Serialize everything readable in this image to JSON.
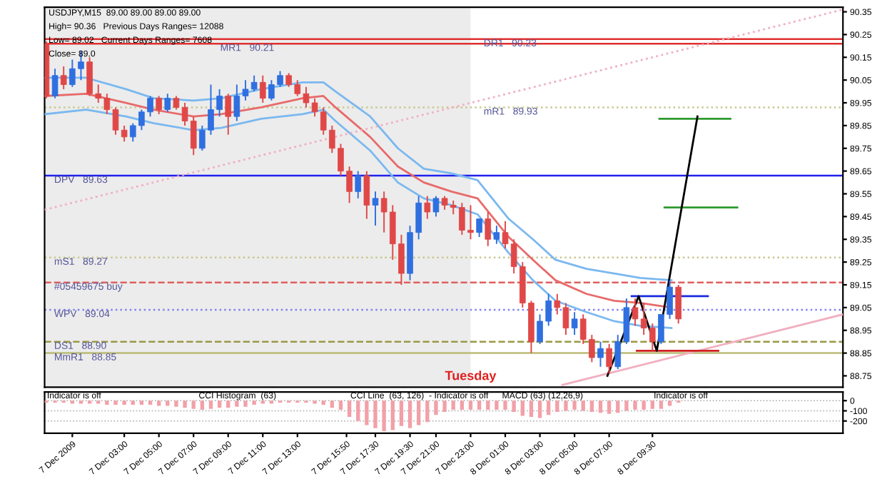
{
  "chart_data": [
    {
      "type": "candlestick",
      "xlim": [
        "2009-12-06T22:24",
        "2009-12-08T20:30"
      ],
      "ylim": [
        88.7,
        90.37
      ],
      "tick_labels": "y",
      "yticks": [
        90.35,
        90.25,
        90.15,
        90.05,
        89.95,
        89.85,
        89.75,
        89.65,
        89.55,
        89.45,
        89.35,
        89.25,
        89.15,
        89.05,
        88.95,
        88.85,
        88.75
      ],
      "bands": [
        {
          "axis": "x",
          "from": "2009-12-06T22:24",
          "to": "2009-12-07T23:00",
          "color": "#ececec"
        }
      ],
      "ref_lines": [
        {
          "axis": "y",
          "value": 90.21,
          "label": "MR1   90.21",
          "color": "#e03030",
          "line_style": "solid"
        },
        {
          "axis": "y",
          "value": 90.23,
          "label": "DR1   90.23",
          "color": "#e03030",
          "line_style": "solid"
        },
        {
          "axis": "y",
          "value": 89.93,
          "label": "mR1   89.93",
          "color": "#c8c890",
          "line_style": "dotted"
        },
        {
          "axis": "y",
          "value": 89.63,
          "label": "DPV   89.63",
          "color": "#2020ee",
          "line_style": "solid"
        },
        {
          "axis": "y",
          "value": 89.27,
          "label": "mS1   89.27",
          "color": "#c8c890",
          "line_style": "dotted"
        },
        {
          "axis": "y",
          "value": 89.16,
          "label": "#05459675 buy",
          "color": "#e06060",
          "line_style": "dashed"
        },
        {
          "axis": "y",
          "value": 89.04,
          "label": "WPV   89.04",
          "color": "#8080ee",
          "line_style": "dotted"
        },
        {
          "axis": "y",
          "value": 88.9,
          "label": "DS1   88.90",
          "color": "#999944",
          "line_style": "dashed"
        },
        {
          "axis": "y",
          "value": 88.85,
          "label": "MmR1   88.85",
          "color": "#bbbb77",
          "line_style": "solid"
        }
      ],
      "annotations": [
        "USDJPY,M15  89.00 89.00 89.00 89.00",
        "High= 90.36   Previous Days Ranges= 12088",
        "Low= 89.02   Current Days Ranges= 7608",
        "Close= 89.0",
        {
          "text": "Tuesday",
          "x": "2009-12-07T23:00",
          "y": 88.72
        }
      ],
      "series": [
        {
          "x": [
            "2009-12-06T22:30",
            "2009-12-06T23:00",
            "2009-12-06T23:30",
            "2009-12-07T00:00",
            "2009-12-07T00:30",
            "2009-12-07T01:00",
            "2009-12-07T01:30",
            "2009-12-07T02:00",
            "2009-12-07T02:30",
            "2009-12-07T03:00",
            "2009-12-07T03:30",
            "2009-12-07T04:00",
            "2009-12-07T04:30",
            "2009-12-07T05:00",
            "2009-12-07T05:30",
            "2009-12-07T06:00",
            "2009-12-07T06:30",
            "2009-12-07T07:00",
            "2009-12-07T07:30",
            "2009-12-07T08:00",
            "2009-12-07T08:30",
            "2009-12-07T09:00",
            "2009-12-07T09:30",
            "2009-12-07T10:00",
            "2009-12-07T10:30",
            "2009-12-07T11:00",
            "2009-12-07T11:30",
            "2009-12-07T12:00",
            "2009-12-07T12:30",
            "2009-12-07T13:00",
            "2009-12-07T13:30",
            "2009-12-07T14:00",
            "2009-12-07T14:30",
            "2009-12-07T15:00",
            "2009-12-07T15:30",
            "2009-12-07T16:00",
            "2009-12-07T16:30",
            "2009-12-07T17:00",
            "2009-12-07T17:30",
            "2009-12-07T18:00",
            "2009-12-07T18:30",
            "2009-12-07T19:00",
            "2009-12-07T19:30",
            "2009-12-07T20:00",
            "2009-12-07T20:30",
            "2009-12-07T21:00",
            "2009-12-07T21:30",
            "2009-12-07T22:00",
            "2009-12-07T22:30",
            "2009-12-07T23:00",
            "2009-12-07T23:30",
            "2009-12-08T00:00",
            "2009-12-08T00:30",
            "2009-12-08T01:00",
            "2009-12-08T01:30",
            "2009-12-08T02:00",
            "2009-12-08T02:30",
            "2009-12-08T03:00",
            "2009-12-08T03:30",
            "2009-12-08T04:00",
            "2009-12-08T04:30",
            "2009-12-08T05:00",
            "2009-12-08T05:30",
            "2009-12-08T06:00",
            "2009-12-08T06:30",
            "2009-12-08T07:00",
            "2009-12-08T07:30",
            "2009-12-08T08:00",
            "2009-12-08T08:30",
            "2009-12-08T09:00",
            "2009-12-08T09:30",
            "2009-12-08T10:00",
            "2009-12-08T10:30",
            "2009-12-08T11:00"
          ],
          "ohlc": [
            [
              90.21,
              90.22,
              89.97,
              89.98
            ],
            [
              89.98,
              90.1,
              89.97,
              90.07
            ],
            [
              90.07,
              90.11,
              90.01,
              90.03
            ],
            [
              90.03,
              90.14,
              90.02,
              90.1
            ],
            [
              90.1,
              90.18,
              90.05,
              90.13
            ],
            [
              90.13,
              90.15,
              89.98,
              89.99
            ],
            [
              89.99,
              90.03,
              89.95,
              89.97
            ],
            [
              89.97,
              89.99,
              89.9,
              89.92
            ],
            [
              89.92,
              89.93,
              89.81,
              89.83
            ],
            [
              89.83,
              89.85,
              89.78,
              89.8
            ],
            [
              89.8,
              89.86,
              89.78,
              89.85
            ],
            [
              89.85,
              89.92,
              89.83,
              89.91
            ],
            [
              89.91,
              89.98,
              89.89,
              89.97
            ],
            [
              89.97,
              89.98,
              89.9,
              89.92
            ],
            [
              89.92,
              89.99,
              89.91,
              89.97
            ],
            [
              89.97,
              89.98,
              89.92,
              89.93
            ],
            [
              89.93,
              89.95,
              89.85,
              89.87
            ],
            [
              89.87,
              89.89,
              89.72,
              89.75
            ],
            [
              89.75,
              89.85,
              89.74,
              89.83
            ],
            [
              89.83,
              90.03,
              89.81,
              89.92
            ],
            [
              89.92,
              90.01,
              89.89,
              89.98
            ],
            [
              89.98,
              89.99,
              89.81,
              89.89
            ],
            [
              89.89,
              90.03,
              89.87,
              89.98
            ],
            [
              89.98,
              90.05,
              89.96,
              90.01
            ],
            [
              90.01,
              90.07,
              90.0,
              90.04
            ],
            [
              90.04,
              90.07,
              89.95,
              89.97
            ],
            [
              89.97,
              90.05,
              89.96,
              90.03
            ],
            [
              90.03,
              90.09,
              90.02,
              90.07
            ],
            [
              90.07,
              90.08,
              90.02,
              90.03
            ],
            [
              90.03,
              90.05,
              89.98,
              89.99
            ],
            [
              89.99,
              90.02,
              89.93,
              89.95
            ],
            [
              89.95,
              89.97,
              89.89,
              89.91
            ],
            [
              89.91,
              89.93,
              89.81,
              89.83
            ],
            [
              89.83,
              89.85,
              89.73,
              89.75
            ],
            [
              89.75,
              89.77,
              89.63,
              89.65
            ],
            [
              89.65,
              89.67,
              89.51,
              89.56
            ],
            [
              89.56,
              89.65,
              89.53,
              89.63
            ],
            [
              89.63,
              89.65,
              89.44,
              89.5
            ],
            [
              89.5,
              89.56,
              89.41,
              89.53
            ],
            [
              89.53,
              89.56,
              89.38,
              89.47
            ],
            [
              89.47,
              89.5,
              89.26,
              89.33
            ],
            [
              89.33,
              89.37,
              89.15,
              89.2
            ],
            [
              89.2,
              89.41,
              89.17,
              89.38
            ],
            [
              89.38,
              89.54,
              89.35,
              89.51
            ],
            [
              89.51,
              89.54,
              89.44,
              89.47
            ],
            [
              89.47,
              89.54,
              89.45,
              89.53
            ],
            [
              89.53,
              89.54,
              89.48,
              89.5
            ],
            [
              89.5,
              89.52,
              89.46,
              89.49
            ],
            [
              89.49,
              89.51,
              89.37,
              89.39
            ],
            [
              89.39,
              89.5,
              89.35,
              89.38
            ],
            [
              89.38,
              89.44,
              89.36,
              89.44
            ],
            [
              89.44,
              89.47,
              89.32,
              89.35
            ],
            [
              89.35,
              89.41,
              89.33,
              89.38
            ],
            [
              89.38,
              89.43,
              89.31,
              89.33
            ],
            [
              89.33,
              89.35,
              89.2,
              89.23
            ],
            [
              89.23,
              89.25,
              89.05,
              89.07
            ],
            [
              89.07,
              89.08,
              88.85,
              88.9
            ],
            [
              88.9,
              89.02,
              88.89,
              88.99
            ],
            [
              88.99,
              89.11,
              88.97,
              89.08
            ],
            [
              89.08,
              89.11,
              89.02,
              89.05
            ],
            [
              89.05,
              89.07,
              88.93,
              88.96
            ],
            [
              88.96,
              89.03,
              88.93,
              89.0
            ],
            [
              89.0,
              89.02,
              88.89,
              88.91
            ],
            [
              88.91,
              88.93,
              88.81,
              88.83
            ],
            [
              88.83,
              88.9,
              88.79,
              88.87
            ],
            [
              88.87,
              88.89,
              88.76,
              88.79
            ],
            [
              88.79,
              88.93,
              88.78,
              88.9
            ],
            [
              88.9,
              89.09,
              88.89,
              89.05
            ],
            [
              89.05,
              89.09,
              88.97,
              89.0
            ],
            [
              89.0,
              89.07,
              88.93,
              88.96
            ],
            [
              88.96,
              88.98,
              88.86,
              88.9
            ],
            [
              88.9,
              89.02,
              88.89,
              89.02
            ],
            [
              89.02,
              89.17,
              89.0,
              89.14
            ],
            [
              89.14,
              89.15,
              88.98,
              89.0
            ]
          ],
          "colors": [
            "#e04848",
            "#2f6fe0",
            "#e04848",
            "#2f6fe0",
            "#2f6fe0",
            "#e04848",
            "#e04848",
            "#e04848",
            "#e04848",
            "#e04848",
            "#2f6fe0",
            "#2f6fe0",
            "#2f6fe0",
            "#e04848",
            "#2f6fe0",
            "#e04848",
            "#e04848",
            "#e04848",
            "#2f6fe0",
            "#2f6fe0",
            "#2f6fe0",
            "#e04848",
            "#2f6fe0",
            "#2f6fe0",
            "#2f6fe0",
            "#e04848",
            "#2f6fe0",
            "#2f6fe0",
            "#e04848",
            "#e04848",
            "#e04848",
            "#e04848",
            "#e04848",
            "#e04848",
            "#e04848",
            "#e04848",
            "#2f6fe0",
            "#e04848",
            "#2f6fe0",
            "#e04848",
            "#e04848",
            "#e04848",
            "#2f6fe0",
            "#2f6fe0",
            "#e04848",
            "#2f6fe0",
            "#e04848",
            "#e04848",
            "#e04848",
            "#e04848",
            "#2f6fe0",
            "#e04848",
            "#2f6fe0",
            "#e04848",
            "#e04848",
            "#e04848",
            "#e04848",
            "#2f6fe0",
            "#2f6fe0",
            "#e04848",
            "#e04848",
            "#2f6fe0",
            "#e04848",
            "#e04848",
            "#2f6fe0",
            "#e04848",
            "#2f6fe0",
            "#2f6fe0",
            "#e04848",
            "#e04848",
            "#e04848",
            "#2f6fe0",
            "#2f6fe0",
            "#e04848"
          ]
        },
        {
          "type": "line",
          "color": "#e86a6a",
          "x": [
            "2009-12-06T22:24",
            "2009-12-07T00:48",
            "2009-12-07T03:06",
            "2009-12-07T04:42",
            "2009-12-07T07:00",
            "2009-12-07T08:36",
            "2009-12-07T10:54",
            "2009-12-07T13:18",
            "2009-12-07T14:30",
            "2009-12-07T15:12",
            "2009-12-07T17:12",
            "2009-12-07T18:48",
            "2009-12-07T20:18",
            "2009-12-07T21:54",
            "2009-12-07T23:24",
            "2009-12-08T01:12",
            "2009-12-08T02:36",
            "2009-12-08T03:54",
            "2009-12-08T05:42",
            "2009-12-08T07:18",
            "2009-12-08T08:48",
            "2009-12-08T10:36"
          ],
          "values": [
            89.98,
            89.99,
            89.95,
            89.92,
            89.89,
            89.9,
            89.93,
            89.97,
            89.98,
            89.93,
            89.8,
            89.67,
            89.6,
            89.56,
            89.53,
            89.36,
            89.26,
            89.17,
            89.11,
            89.08,
            89.07,
            89.05
          ]
        },
        {
          "type": "line",
          "color": "#7ab8f0",
          "x": [
            "2009-12-06T22:24",
            "2009-12-07T00:48",
            "2009-12-07T03:06",
            "2009-12-07T04:42",
            "2009-12-07T07:00",
            "2009-12-07T08:36",
            "2009-12-07T10:54",
            "2009-12-07T13:18",
            "2009-12-07T14:30",
            "2009-12-07T15:12",
            "2009-12-07T17:12",
            "2009-12-07T18:48",
            "2009-12-07T20:18",
            "2009-12-07T21:54",
            "2009-12-07T23:24",
            "2009-12-08T01:12",
            "2009-12-08T02:36",
            "2009-12-08T03:54",
            "2009-12-08T05:42",
            "2009-12-08T07:18",
            "2009-12-08T08:48",
            "2009-12-08T10:36"
          ],
          "values": [
            90.06,
            90.06,
            90.01,
            89.97,
            89.96,
            89.97,
            90.01,
            90.04,
            90.04,
            90.0,
            89.89,
            89.75,
            89.66,
            89.64,
            89.61,
            89.44,
            89.35,
            89.26,
            89.22,
            89.2,
            89.18,
            89.17
          ]
        },
        {
          "type": "line",
          "color": "#7ab8f0",
          "x": [
            "2009-12-06T22:24",
            "2009-12-07T00:48",
            "2009-12-07T03:06",
            "2009-12-07T04:42",
            "2009-12-07T07:00",
            "2009-12-07T08:36",
            "2009-12-07T10:54",
            "2009-12-07T13:18",
            "2009-12-07T14:30",
            "2009-12-07T15:12",
            "2009-12-07T17:12",
            "2009-12-07T18:48",
            "2009-12-07T20:18",
            "2009-12-07T21:54",
            "2009-12-07T23:24",
            "2009-12-08T01:12",
            "2009-12-08T02:36",
            "2009-12-08T03:54",
            "2009-12-08T05:42",
            "2009-12-08T07:18",
            "2009-12-08T08:48",
            "2009-12-08T10:36"
          ],
          "values": [
            89.9,
            89.92,
            89.89,
            89.86,
            89.83,
            89.84,
            89.88,
            89.9,
            89.92,
            89.87,
            89.74,
            89.6,
            89.53,
            89.5,
            89.46,
            89.29,
            89.17,
            89.08,
            89.03,
            88.99,
            88.97,
            88.96
          ]
        },
        {
          "type": "line",
          "color": "#f0b0c0",
          "line_style": "dotted",
          "x": [
            "2009-12-06T22:24",
            "2009-12-08T20:30"
          ],
          "values": [
            89.48,
            90.36
          ]
        },
        {
          "type": "line",
          "color": "#f0b0c0",
          "x": [
            "2009-12-08T04:18",
            "2009-12-08T20:30"
          ],
          "values": [
            88.71,
            89.02
          ]
        },
        {
          "type": "line",
          "color": "#2e9a2e",
          "x": [
            "2009-12-08T09:54",
            "2009-12-08T14:00"
          ],
          "values": [
            89.88,
            89.88
          ]
        },
        {
          "type": "line",
          "color": "#2e9a2e",
          "x": [
            "2009-12-08T10:12",
            "2009-12-08T14:24"
          ],
          "values": [
            89.49,
            89.49
          ]
        },
        {
          "type": "line",
          "color": "#1a2ae0",
          "x": [
            "2009-12-08T08:18",
            "2009-12-08T12:42"
          ],
          "values": [
            89.1,
            89.1
          ]
        },
        {
          "type": "line",
          "color": "#d02020",
          "x": [
            "2009-12-08T08:36",
            "2009-12-08T13:18"
          ],
          "values": [
            88.86,
            88.86
          ]
        },
        {
          "type": "line",
          "color": "#000000",
          "x": [
            "2009-12-08T06:54",
            "2009-12-08T08:42",
            "2009-12-08T09:45",
            "2009-12-08T12:06"
          ],
          "values": [
            88.75,
            89.1,
            88.86,
            89.89
          ]
        }
      ]
    },
    {
      "type": "bar",
      "xlim": [
        "2009-12-06T22:24",
        "2009-12-08T20:30"
      ],
      "ylim": [
        -320,
        85
      ],
      "grid": "y",
      "xticks": [
        {
          "value": "2009-12-07T00:00",
          "label": "7 Dec 2009"
        },
        {
          "value": "2009-12-07T03:00",
          "label": "7 Dec 03:00"
        },
        {
          "value": "2009-12-07T05:00",
          "label": "7 Dec 05:00"
        },
        {
          "value": "2009-12-07T07:00",
          "label": "7 Dec 07:00"
        },
        {
          "value": "2009-12-07T09:00",
          "label": "7 Dec 09:00"
        },
        {
          "value": "2009-12-07T11:00",
          "label": "7 Dec 11:00"
        },
        {
          "value": "2009-12-07T13:00",
          "label": "7 Dec 13:00"
        },
        {
          "value": "2009-12-07T15:50",
          "label": "7 Dec 15:50"
        },
        {
          "value": "2009-12-07T17:30",
          "label": "7 Dec 17:30"
        },
        {
          "value": "2009-12-07T19:30",
          "label": "7 Dec 19:30"
        },
        {
          "value": "2009-12-07T21:00",
          "label": "7 Dec 21:00"
        },
        {
          "value": "2009-12-07T23:00",
          "label": "7 Dec 23:00"
        },
        {
          "value": "2009-12-08T01:00",
          "label": "8 Dec 01:00"
        },
        {
          "value": "2009-12-08T03:00",
          "label": "8 Dec 03:00"
        },
        {
          "value": "2009-12-08T05:00",
          "label": "8 Dec 05:00"
        },
        {
          "value": "2009-12-08T07:00",
          "label": "8 Dec 07:00"
        },
        {
          "value": "2009-12-08T09:30",
          "label": "8 Dec 09:30"
        }
      ],
      "yticks": [
        0,
        -100,
        -200
      ],
      "annotations": [
        "Indicator is off",
        "CCI Histogram  (63)",
        "CCI Line  (63, 126)  - Indicator is off",
        "MACD (63) (12,26,9)",
        "Indicator is off"
      ],
      "series": [
        {
          "color": "#f2a0a8",
          "x": [
            "2009-12-06T22:30",
            "2009-12-06T23:00",
            "2009-12-06T23:30",
            "2009-12-07T00:00",
            "2009-12-07T00:30",
            "2009-12-07T01:00",
            "2009-12-07T01:30",
            "2009-12-07T02:00",
            "2009-12-07T02:30",
            "2009-12-07T03:00",
            "2009-12-07T03:30",
            "2009-12-07T04:00",
            "2009-12-07T04:30",
            "2009-12-07T05:00",
            "2009-12-07T05:30",
            "2009-12-07T06:00",
            "2009-12-07T06:30",
            "2009-12-07T07:00",
            "2009-12-07T07:30",
            "2009-12-07T08:00",
            "2009-12-07T08:30",
            "2009-12-07T09:00",
            "2009-12-07T09:30",
            "2009-12-07T10:00",
            "2009-12-07T10:30",
            "2009-12-07T11:00",
            "2009-12-07T11:30",
            "2009-12-07T12:00",
            "2009-12-07T12:30",
            "2009-12-07T13:00",
            "2009-12-07T13:30",
            "2009-12-07T14:00",
            "2009-12-07T14:30",
            "2009-12-07T15:00",
            "2009-12-07T15:30",
            "2009-12-07T16:00",
            "2009-12-07T16:30",
            "2009-12-07T17:00",
            "2009-12-07T17:30",
            "2009-12-07T18:00",
            "2009-12-07T18:30",
            "2009-12-07T19:00",
            "2009-12-07T19:30",
            "2009-12-07T20:00",
            "2009-12-07T20:30",
            "2009-12-07T21:00",
            "2009-12-07T21:30",
            "2009-12-07T22:00",
            "2009-12-07T22:30",
            "2009-12-07T23:00",
            "2009-12-07T23:30",
            "2009-12-08T00:00",
            "2009-12-08T00:30",
            "2009-12-08T01:00",
            "2009-12-08T01:30",
            "2009-12-08T02:00",
            "2009-12-08T02:30",
            "2009-12-08T03:00",
            "2009-12-08T03:30",
            "2009-12-08T04:00",
            "2009-12-08T04:30",
            "2009-12-08T05:00",
            "2009-12-08T05:30",
            "2009-12-08T06:00",
            "2009-12-08T06:30",
            "2009-12-08T07:00",
            "2009-12-08T07:30",
            "2009-12-08T08:00",
            "2009-12-08T08:30",
            "2009-12-08T09:00",
            "2009-12-08T09:30",
            "2009-12-08T10:00",
            "2009-12-08T10:30",
            "2009-12-08T11:00"
          ],
          "values": [
            -20,
            -20,
            -20,
            -30,
            -30,
            -30,
            -30,
            -40,
            -40,
            -40,
            -40,
            -40,
            -40,
            -50,
            -50,
            -60,
            -70,
            -80,
            -90,
            -80,
            -70,
            -70,
            -60,
            -60,
            -40,
            -30,
            -30,
            -20,
            -20,
            -20,
            -20,
            -30,
            -40,
            -70,
            -90,
            -160,
            -200,
            -240,
            -270,
            -300,
            -290,
            -250,
            -270,
            -240,
            -210,
            -140,
            -110,
            -90,
            -90,
            -90,
            -90,
            -90,
            -90,
            -90,
            -110,
            -150,
            -160,
            -170,
            -140,
            -110,
            -100,
            -90,
            -100,
            -110,
            -120,
            -130,
            -120,
            -100,
            -90,
            -90,
            -80,
            -80,
            -50,
            -20
          ]
        }
      ]
    }
  ]
}
